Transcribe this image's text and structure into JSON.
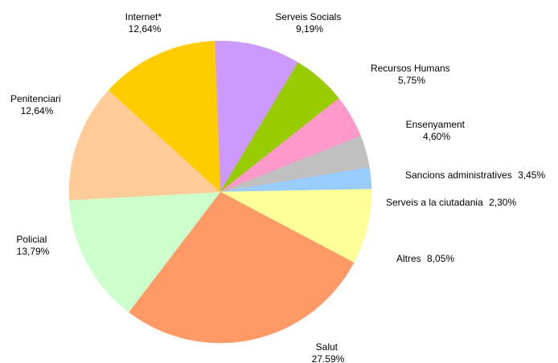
{
  "chart_data": {
    "type": "pie",
    "title": "",
    "slices": [
      {
        "name": "Serveis Socials",
        "value_label": "9,19%",
        "value": 9.19,
        "color": "#cc99ff"
      },
      {
        "name": "Recursos Humans",
        "value_label": "5,75%",
        "value": 5.75,
        "color": "#99cc00"
      },
      {
        "name": "Ensenyament",
        "value_label": "4,60%",
        "value": 4.6,
        "color": "#ff99cc"
      },
      {
        "name": "Sancions administratives",
        "value_label": "3,45%",
        "value": 3.45,
        "color": "#c0c0c0"
      },
      {
        "name": "Serveis a la ciutadania",
        "value_label": "2,30%",
        "value": 2.3,
        "color": "#99ccff"
      },
      {
        "name": "Altres",
        "value_label": "8,05%",
        "value": 8.05,
        "color": "#ffff99"
      },
      {
        "name": "Salut",
        "value_label": "27.59%",
        "value": 27.59,
        "color": "#ff9966"
      },
      {
        "name": "Policial",
        "value_label": "13,79%",
        "value": 13.79,
        "color": "#ccffcc"
      },
      {
        "name": "Penitenciari",
        "value_label": "12,64%",
        "value": 12.64,
        "color": "#ffcc99"
      },
      {
        "name": "Internet*",
        "value_label": "12,64%",
        "value": 12.64,
        "color": "#ffcc00"
      }
    ]
  }
}
